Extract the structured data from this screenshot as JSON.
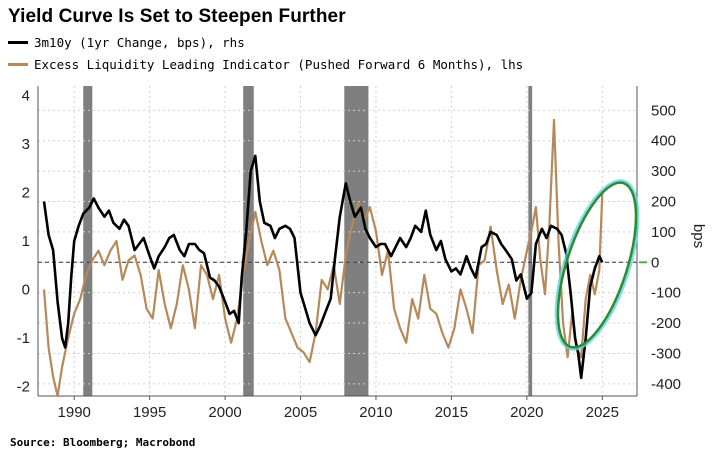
{
  "title": "Yield Curve Is Set to Steepen Further",
  "legend": [
    {
      "label": "3m10y (1yr Change, bps), rhs",
      "color": "#000000"
    },
    {
      "label": "Excess Liquidity Leading Indicator (Pushed Forward 6 Months), lhs",
      "color": "#b5895a"
    }
  ],
  "source": "Source: Bloomberg; Macrobond",
  "chart_data": {
    "type": "line",
    "xlim": [
      1987.6,
      2027.3
    ],
    "x_ticks": [
      1990,
      1995,
      2000,
      2005,
      2010,
      2015,
      2020,
      2025
    ],
    "left_axis": {
      "ylim": [
        -2.2,
        4.2
      ],
      "ticks": [
        4,
        3,
        2,
        1,
        0,
        -1,
        -2
      ]
    },
    "right_axis": {
      "label": "bps",
      "ylim": [
        -440,
        580
      ],
      "ticks": [
        500,
        400,
        300,
        200,
        100,
        0,
        -100,
        -200,
        -300,
        -400
      ]
    },
    "recessions": [
      [
        1990.6,
        1991.2
      ],
      [
        2001.2,
        2001.9
      ],
      [
        2007.9,
        2009.5
      ],
      [
        2020.1,
        2020.35
      ]
    ],
    "zero_line_rhs": 0,
    "series": [
      {
        "name": "3m10y (1yr Change, bps), rhs",
        "axis": "right",
        "color": "#000000",
        "x": [
          1988.0,
          1988.3,
          1988.6,
          1988.9,
          1989.2,
          1989.4,
          1989.6,
          1989.8,
          1990.0,
          1990.3,
          1990.6,
          1991.0,
          1991.3,
          1991.6,
          1992.0,
          1992.3,
          1992.6,
          1993.0,
          1993.3,
          1993.6,
          1994.0,
          1994.3,
          1994.6,
          1995.0,
          1995.3,
          1995.6,
          1996.0,
          1996.3,
          1996.6,
          1997.0,
          1997.3,
          1997.6,
          1998.0,
          1998.3,
          1998.6,
          1999.0,
          1999.3,
          1999.6,
          2000.0,
          2000.3,
          2000.6,
          2000.9,
          2001.1,
          2001.4,
          2001.7,
          2002.0,
          2002.3,
          2002.6,
          2003.0,
          2003.3,
          2003.6,
          2004.0,
          2004.3,
          2004.6,
          2005.0,
          2005.3,
          2005.6,
          2006.0,
          2006.3,
          2006.6,
          2007.0,
          2007.3,
          2007.6,
          2008.0,
          2008.3,
          2008.6,
          2009.0,
          2009.3,
          2009.6,
          2010.0,
          2010.3,
          2010.6,
          2011.0,
          2011.3,
          2011.6,
          2012.0,
          2012.3,
          2012.6,
          2013.0,
          2013.3,
          2013.6,
          2014.0,
          2014.3,
          2014.6,
          2015.0,
          2015.3,
          2015.6,
          2016.0,
          2016.3,
          2016.6,
          2017.0,
          2017.3,
          2017.6,
          2018.0,
          2018.3,
          2018.6,
          2019.0,
          2019.3,
          2019.6,
          2020.0,
          2020.3,
          2020.6,
          2021.0,
          2021.3,
          2021.6,
          2022.0,
          2022.3,
          2022.6,
          2022.9,
          2023.2,
          2023.4,
          2023.6,
          2023.9,
          2024.2,
          2024.5,
          2024.8,
          2025.0
        ],
        "values": [
          200,
          90,
          40,
          -130,
          -250,
          -280,
          -200,
          -50,
          70,
          120,
          160,
          180,
          210,
          180,
          150,
          170,
          130,
          110,
          140,
          120,
          40,
          60,
          80,
          20,
          -20,
          20,
          50,
          80,
          90,
          40,
          20,
          60,
          60,
          40,
          30,
          -50,
          -60,
          -80,
          -130,
          -170,
          -160,
          -200,
          -50,
          100,
          300,
          350,
          200,
          130,
          120,
          80,
          110,
          120,
          110,
          80,
          -100,
          -150,
          -200,
          -240,
          -210,
          -170,
          -120,
          20,
          150,
          260,
          200,
          150,
          180,
          110,
          80,
          50,
          60,
          60,
          20,
          50,
          80,
          50,
          80,
          120,
          100,
          170,
          90,
          40,
          70,
          10,
          -30,
          -20,
          -40,
          20,
          -20,
          -50,
          50,
          60,
          100,
          90,
          60,
          40,
          10,
          -60,
          -40,
          -120,
          -100,
          60,
          110,
          80,
          120,
          110,
          90,
          30,
          -100,
          -250,
          -300,
          -380,
          -250,
          -80,
          -20,
          20,
          0
        ]
      },
      {
        "name": "Excess Liquidity Leading Indicator (Pushed Forward 6 Months), lhs",
        "axis": "left",
        "color": "#b5895a",
        "x": [
          1988.0,
          1988.3,
          1988.6,
          1988.9,
          1989.2,
          1989.6,
          1990.0,
          1990.4,
          1990.8,
          1991.2,
          1991.6,
          1992.0,
          1992.4,
          1992.8,
          1993.2,
          1993.6,
          1994.0,
          1994.4,
          1994.8,
          1995.2,
          1995.6,
          1996.0,
          1996.4,
          1996.8,
          1997.2,
          1997.6,
          1998.0,
          1998.4,
          1998.8,
          1999.2,
          1999.6,
          2000.0,
          2000.4,
          2000.8,
          2001.2,
          2001.6,
          2002.0,
          2002.4,
          2002.8,
          2003.2,
          2003.6,
          2004.0,
          2004.4,
          2004.8,
          2005.2,
          2005.6,
          2006.0,
          2006.4,
          2006.8,
          2007.2,
          2007.6,
          2008.0,
          2008.4,
          2008.8,
          2009.2,
          2009.6,
          2010.0,
          2010.4,
          2010.8,
          2011.2,
          2011.6,
          2012.0,
          2012.4,
          2012.8,
          2013.2,
          2013.6,
          2014.0,
          2014.4,
          2014.8,
          2015.2,
          2015.6,
          2016.0,
          2016.4,
          2016.8,
          2017.2,
          2017.6,
          2018.0,
          2018.4,
          2018.8,
          2019.2,
          2019.6,
          2020.0,
          2020.3,
          2020.6,
          2020.9,
          2021.2,
          2021.5,
          2021.8,
          2022.1,
          2022.4,
          2022.7,
          2023.0,
          2023.3,
          2023.6,
          2023.9,
          2024.2,
          2024.5,
          2024.8,
          2025.0
        ],
        "values": [
          0,
          -1.2,
          -1.8,
          -2.2,
          -1.6,
          -1.0,
          -0.5,
          -0.2,
          0.3,
          0.6,
          0.8,
          0.5,
          0.8,
          1.0,
          0.2,
          0.6,
          0.7,
          0.3,
          -0.4,
          -0.6,
          0.4,
          -0.3,
          -0.8,
          -0.3,
          0.5,
          0.0,
          -0.8,
          0.5,
          0.3,
          -0.2,
          0.3,
          -0.6,
          -1.1,
          -0.6,
          0.3,
          1.0,
          1.6,
          1.0,
          0.5,
          0.8,
          0.4,
          -0.6,
          -0.9,
          -1.2,
          -1.3,
          -1.5,
          -0.9,
          0.2,
          0.0,
          0.5,
          -0.3,
          0.7,
          1.3,
          1.8,
          1.4,
          1.7,
          1.2,
          0.3,
          0.8,
          -0.4,
          -0.8,
          -1.1,
          -0.2,
          -0.6,
          0.3,
          -0.4,
          -0.5,
          -0.9,
          -1.2,
          -0.8,
          0.0,
          -0.4,
          -0.9,
          0.5,
          0.6,
          1.3,
          0.4,
          -0.3,
          0.1,
          -0.6,
          0.2,
          0.8,
          1.2,
          1.7,
          0.6,
          -0.1,
          1.4,
          3.5,
          1.0,
          -0.7,
          -1.4,
          -0.5,
          -1.2,
          -1.4,
          -0.2,
          0.3,
          -0.1,
          0.4,
          2.0
        ]
      }
    ]
  }
}
